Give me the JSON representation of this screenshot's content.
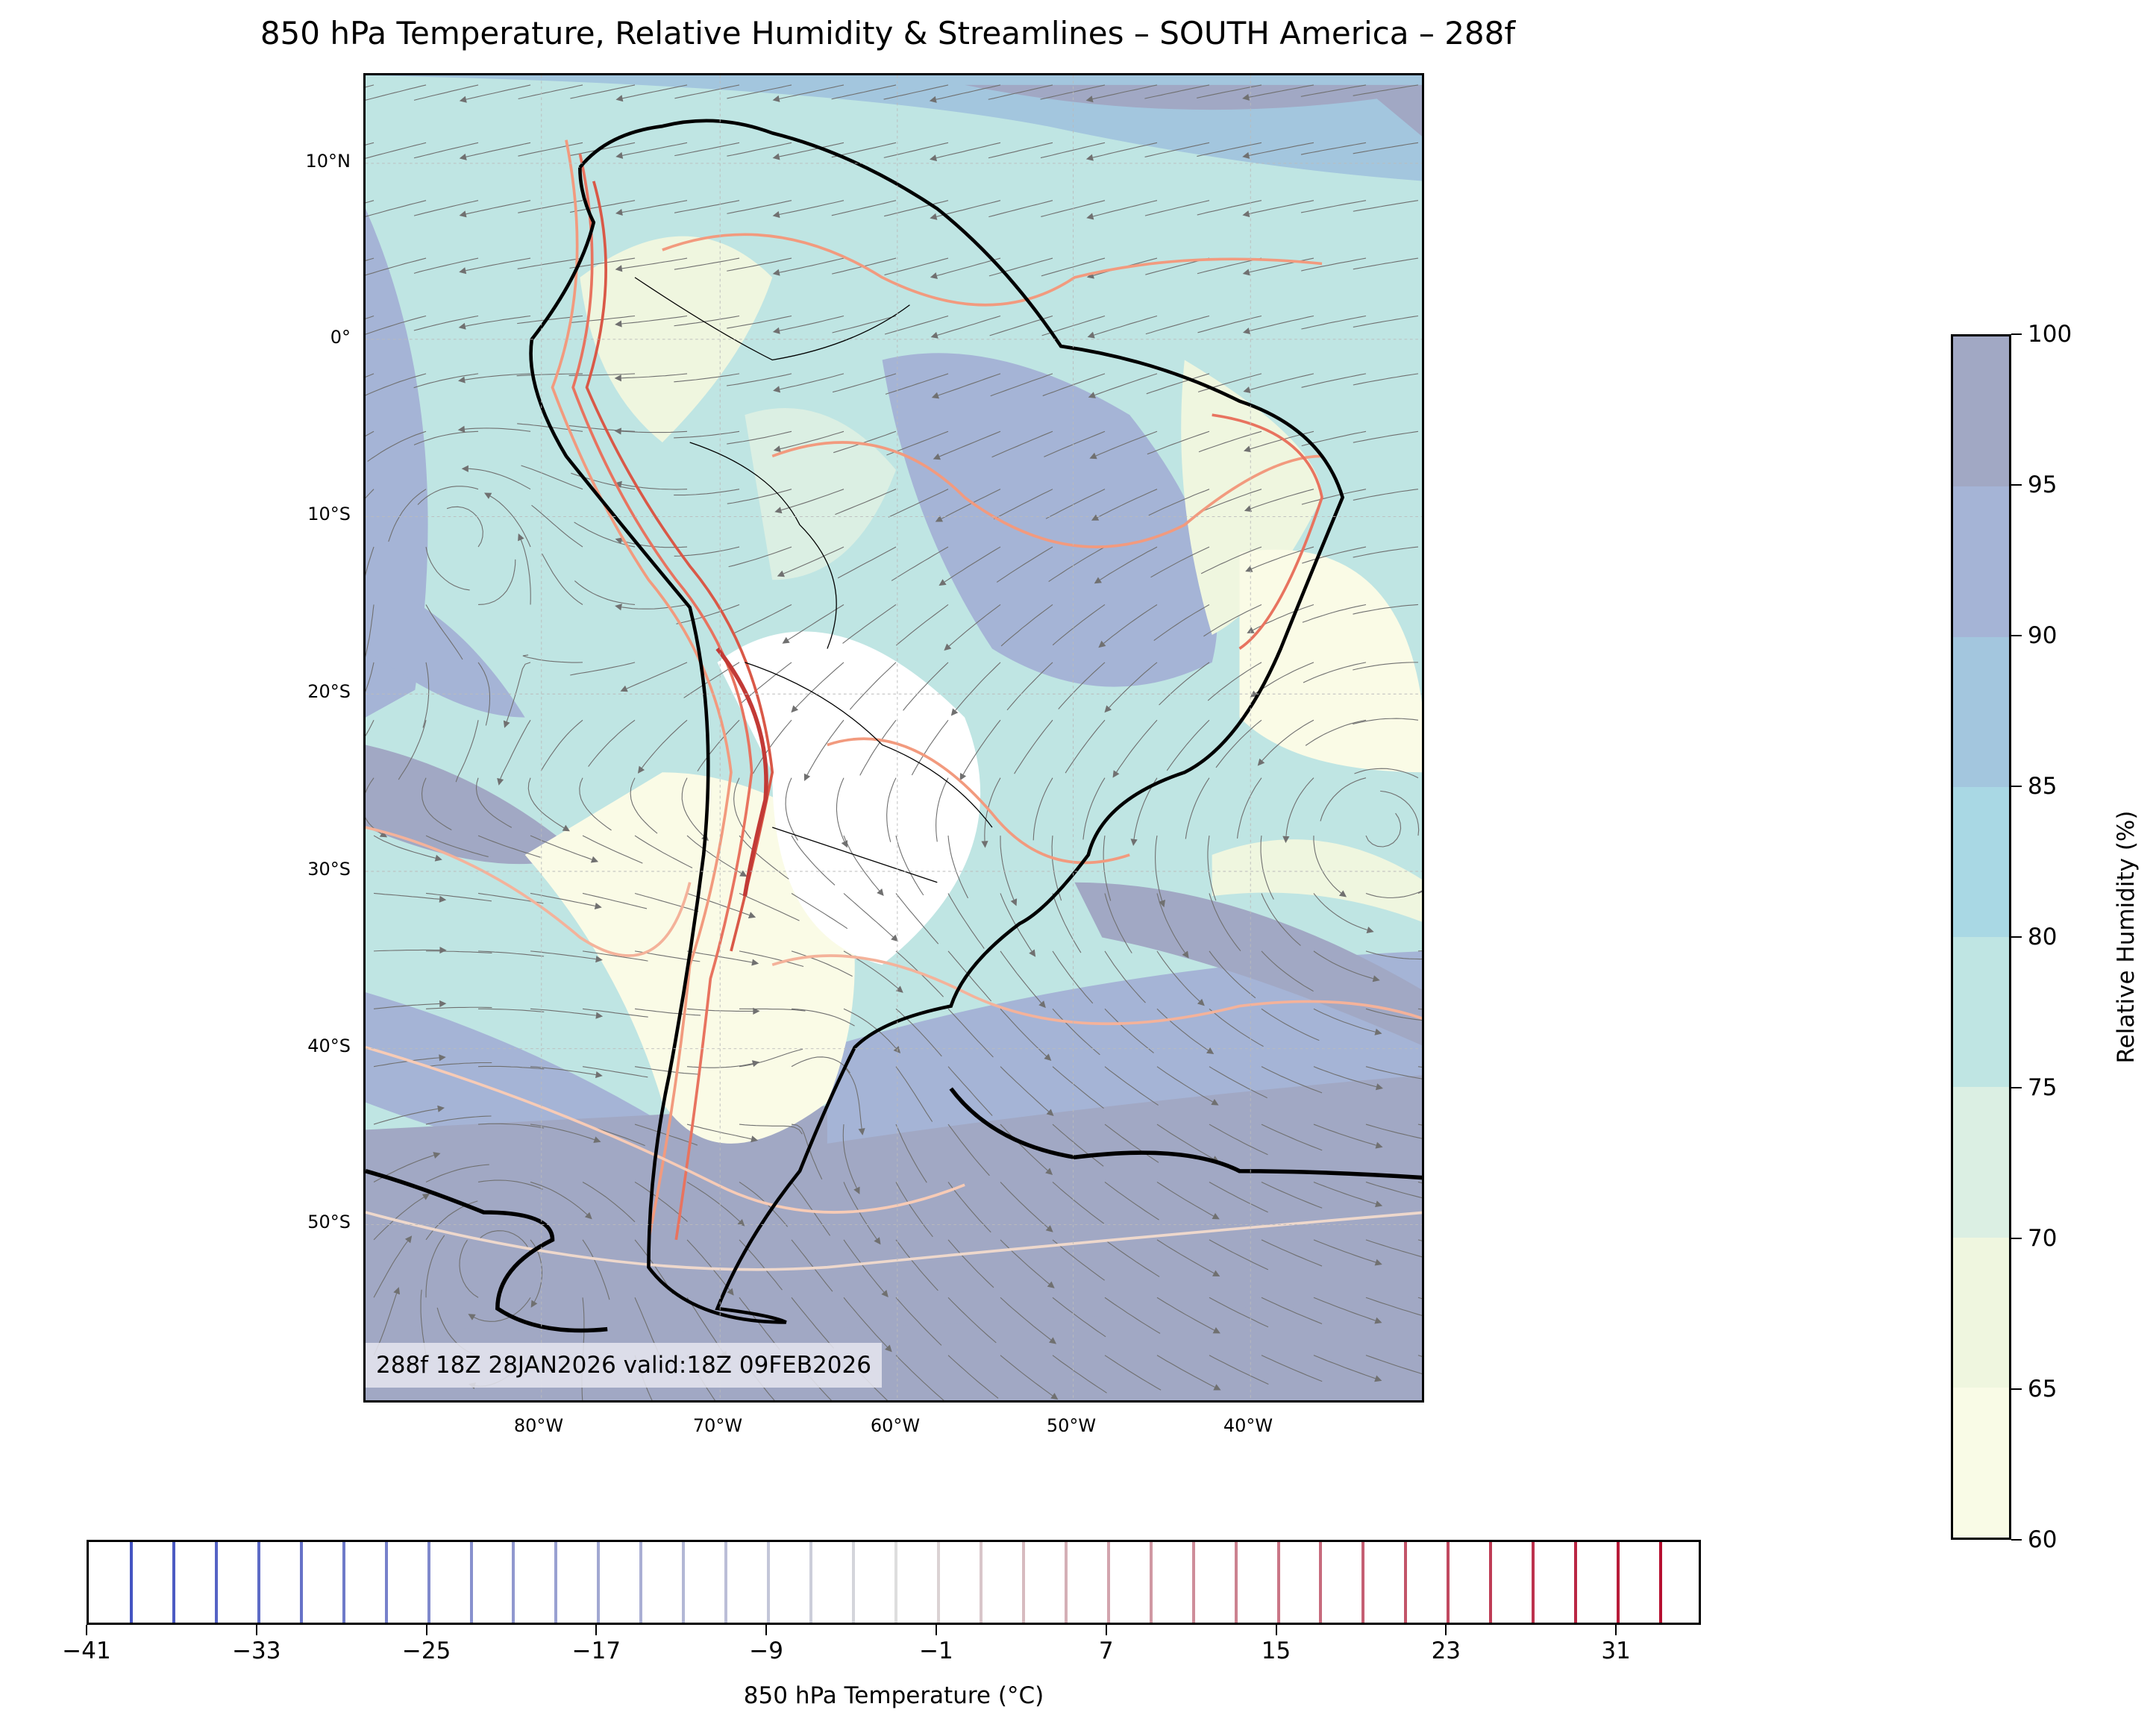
{
  "title": "850 hPa Temperature, Relative Humidity & Streamlines – SOUTH America – 288f",
  "map": {
    "lat_labels": [
      "10°N",
      "0°",
      "10°S",
      "20°S",
      "30°S",
      "40°S",
      "50°S"
    ],
    "lon_labels": [
      "80°W",
      "70°W",
      "60°W",
      "50°W",
      "40°W"
    ],
    "annotation": "288f 18Z 28JAN2026 valid:18Z 09FEB2026"
  },
  "temp_colorbar": {
    "label": "850 hPa Temperature (°C)",
    "ticks": [
      "−41",
      "−33",
      "−25",
      "−17",
      "−9",
      "−1",
      "7",
      "15",
      "23",
      "31"
    ],
    "range": [
      -41,
      35
    ],
    "contour_interval": 2
  },
  "rh_colorbar": {
    "label": "Relative Humidity (%)",
    "ticks": [
      "100",
      "95",
      "90",
      "85",
      "80",
      "75",
      "70",
      "65",
      "60"
    ],
    "colors": [
      "#a1a8c4",
      "#a5b4d6",
      "#a3c6de",
      "#a9d8e4",
      "#bfe5e3",
      "#dbefe3",
      "#eff6df",
      "#f9fbe6"
    ]
  },
  "colors": {
    "streamline": "#707070",
    "coast": "#000000"
  }
}
